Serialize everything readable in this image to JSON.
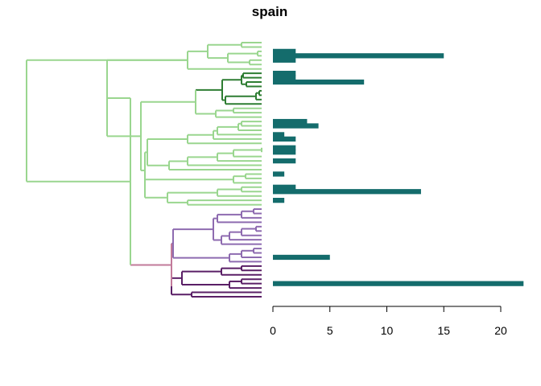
{
  "chart_data": {
    "type": "bar",
    "title": "spain",
    "orientation": "horizontal",
    "xlim": [
      0,
      22
    ],
    "x_ticks": [
      0,
      5,
      10,
      15,
      20
    ],
    "bar_color": "#146c6c",
    "colors": {
      "light_green": "#9ad68f",
      "dark_green": "#2e7d32",
      "light_purple": "#8e6bb0",
      "dark_purple": "#5a1f66",
      "pink": "#c27a9a"
    },
    "leaf_count": 59,
    "bars": [
      {
        "leaf": 2,
        "value": 2
      },
      {
        "leaf": 3,
        "value": 15
      },
      {
        "leaf": 4,
        "value": 2
      },
      {
        "leaf": 7,
        "value": 2
      },
      {
        "leaf": 8,
        "value": 2
      },
      {
        "leaf": 9,
        "value": 8
      },
      {
        "leaf": 18,
        "value": 3
      },
      {
        "leaf": 19,
        "value": 4
      },
      {
        "leaf": 21,
        "value": 1
      },
      {
        "leaf": 22,
        "value": 2
      },
      {
        "leaf": 24,
        "value": 2
      },
      {
        "leaf": 25,
        "value": 2
      },
      {
        "leaf": 27,
        "value": 2
      },
      {
        "leaf": 30,
        "value": 1
      },
      {
        "leaf": 33,
        "value": 2
      },
      {
        "leaf": 34,
        "value": 13
      },
      {
        "leaf": 36,
        "value": 1
      },
      {
        "leaf": 49,
        "value": 5
      },
      {
        "leaf": 55,
        "value": 22
      }
    ],
    "groups": [
      {
        "color_key": "light_green",
        "first_leaf": 0,
        "last_leaf": 37
      },
      {
        "color_key": "light_purple",
        "first_leaf": 38,
        "last_leaf": 50
      },
      {
        "color_key": "dark_purple",
        "first_leaf": 51,
        "last_leaf": 58
      }
    ],
    "subgroups": [
      {
        "color_key": "dark_green",
        "first_leaf": 7,
        "last_leaf": 14
      }
    ]
  }
}
